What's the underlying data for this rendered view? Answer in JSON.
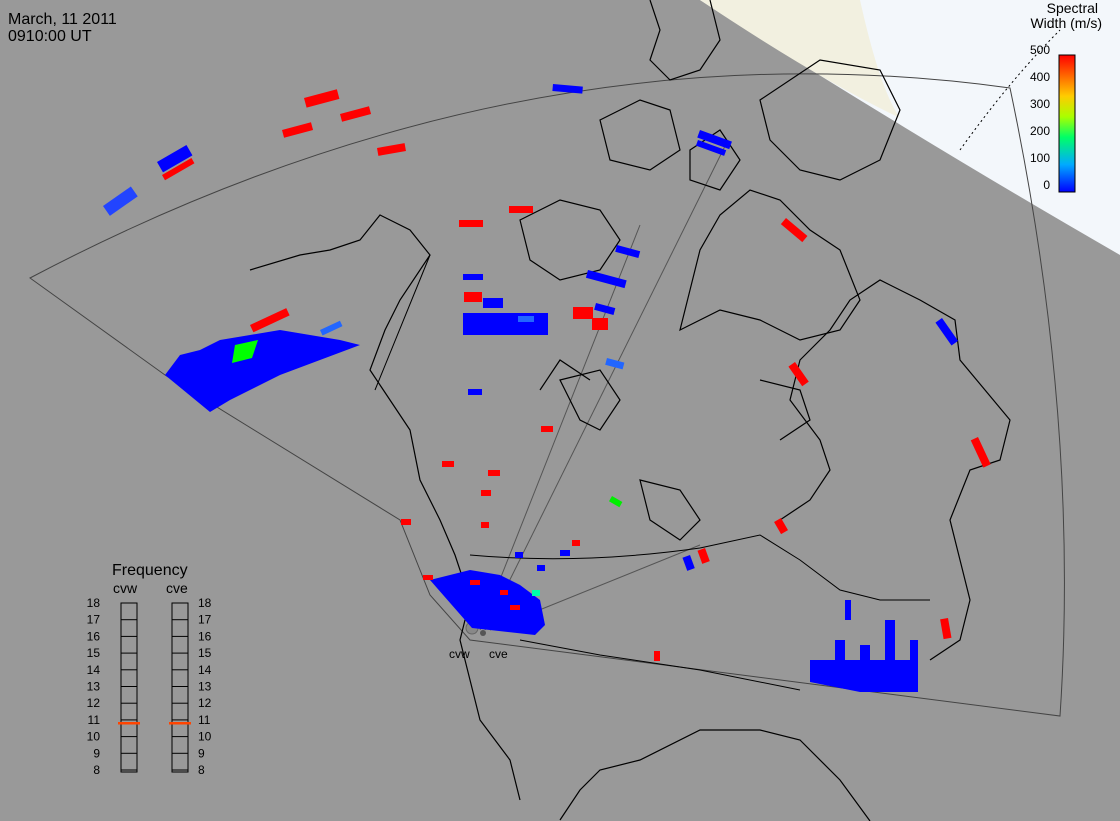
{
  "header": {
    "date": "March, 11 2011",
    "time": "0910:00 UT"
  },
  "colorbar": {
    "title_line1": "Spectral",
    "title_line2": "Width (m/s)",
    "ticks": [
      "500",
      "400",
      "300",
      "200",
      "100",
      "0"
    ],
    "min": 0,
    "max": 500
  },
  "frequency": {
    "title": "Frequency",
    "radar_left": "cvw",
    "radar_right": "cve",
    "ticks": [
      "18",
      "17",
      "16",
      "15",
      "14",
      "13",
      "12",
      "11",
      "10",
      "9",
      "8"
    ],
    "cvw_value_mhz": 10.8,
    "cve_value_mhz": 10.8,
    "marker_color": "#ff4400"
  },
  "radars": {
    "cvw_label": "cvw",
    "cve_label": "cve"
  },
  "colors": {
    "background": "#999999",
    "daylight": "#f4f8fc",
    "terminator_zone": "#f2f0e2",
    "low_width": "#0000ff",
    "high_width": "#ff0000"
  }
}
